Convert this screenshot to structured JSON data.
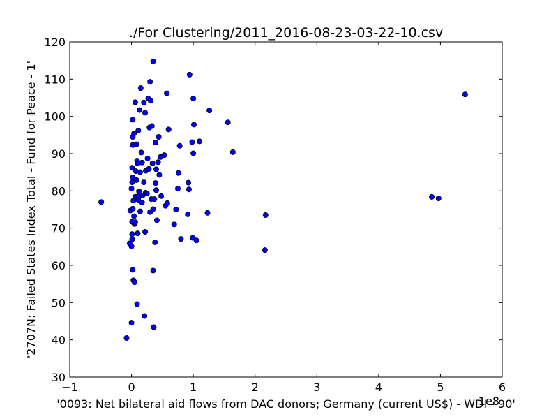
{
  "chart_data": {
    "type": "scatter",
    "title": "./For Clustering/2011_2016-08-23-03-22-10.csv",
    "xlabel": "'0093: Net bilateral aid flows from DAC donors; Germany  (current US$) - WDI - 90'",
    "ylabel": "'2707N: Failed States Index Total - Fund for Peace - 1'",
    "x_offset_label": "1e8",
    "xlim": [
      -1,
      6
    ],
    "ylim": [
      30,
      120
    ],
    "xticks": [
      "−1",
      "0",
      "1",
      "2",
      "3",
      "4",
      "5",
      "6"
    ],
    "yticks": [
      "30",
      "40",
      "50",
      "60",
      "70",
      "80",
      "90",
      "100",
      "110",
      "120"
    ],
    "xtick_values": [
      -1,
      0,
      1,
      2,
      3,
      4,
      5,
      6
    ],
    "ytick_values": [
      30,
      40,
      50,
      60,
      70,
      80,
      90,
      100,
      110,
      120
    ],
    "grid": false,
    "marker_color": "#0000ff",
    "points": [
      [
        -0.49,
        77.0
      ],
      [
        -0.08,
        40.5
      ],
      [
        -0.03,
        65.9
      ],
      [
        -0.02,
        74.7
      ],
      [
        0.0,
        44.6
      ],
      [
        0.0,
        65.1
      ],
      [
        0.01,
        86.2
      ],
      [
        0.01,
        67.0
      ],
      [
        0.0,
        80.6
      ],
      [
        0.01,
        82.3
      ],
      [
        0.02,
        83.6
      ],
      [
        0.02,
        94.5
      ],
      [
        0.02,
        92.3
      ],
      [
        0.02,
        99.1
      ],
      [
        0.01,
        71.7
      ],
      [
        0.01,
        68.4
      ],
      [
        0.02,
        75.2
      ],
      [
        0.02,
        58.8
      ],
      [
        0.03,
        56.0
      ],
      [
        0.04,
        95.4
      ],
      [
        0.03,
        77.4
      ],
      [
        0.04,
        73.2
      ],
      [
        0.05,
        55.5
      ],
      [
        0.05,
        71.1
      ],
      [
        0.06,
        71.6
      ],
      [
        0.06,
        103.8
      ],
      [
        0.06,
        78.4
      ],
      [
        0.07,
        85.3
      ],
      [
        0.08,
        82.9
      ],
      [
        0.08,
        92.5
      ],
      [
        0.09,
        88.1
      ],
      [
        0.09,
        49.6
      ],
      [
        0.1,
        87.4
      ],
      [
        0.1,
        68.6
      ],
      [
        0.11,
        96.2
      ],
      [
        0.11,
        78.6
      ],
      [
        0.11,
        77.6
      ],
      [
        0.12,
        79.9
      ],
      [
        0.13,
        101.7
      ],
      [
        0.14,
        74.5
      ],
      [
        0.14,
        85.0
      ],
      [
        0.15,
        107.6
      ],
      [
        0.16,
        90.3
      ],
      [
        0.17,
        76.9
      ],
      [
        0.17,
        87.6
      ],
      [
        0.18,
        78.8
      ],
      [
        0.2,
        103.7
      ],
      [
        0.2,
        82.3
      ],
      [
        0.21,
        46.4
      ],
      [
        0.22,
        101.0
      ],
      [
        0.22,
        69.0
      ],
      [
        0.23,
        85.4
      ],
      [
        0.23,
        79.5
      ],
      [
        0.25,
        79.3
      ],
      [
        0.26,
        88.7
      ],
      [
        0.27,
        104.8
      ],
      [
        0.28,
        85.9
      ],
      [
        0.29,
        97.0
      ],
      [
        0.3,
        109.3
      ],
      [
        0.3,
        74.3
      ],
      [
        0.31,
        104.2
      ],
      [
        0.32,
        77.8
      ],
      [
        0.33,
        97.4
      ],
      [
        0.34,
        87.4
      ],
      [
        0.35,
        58.6
      ],
      [
        0.35,
        114.8
      ],
      [
        0.35,
        75.1
      ],
      [
        0.36,
        43.4
      ],
      [
        0.37,
        77.8
      ],
      [
        0.38,
        66.2
      ],
      [
        0.39,
        82.1
      ],
      [
        0.39,
        93.0
      ],
      [
        0.4,
        85.8
      ],
      [
        0.4,
        80.2
      ],
      [
        0.41,
        72.1
      ],
      [
        0.43,
        87.7
      ],
      [
        0.44,
        94.5
      ],
      [
        0.45,
        84.3
      ],
      [
        0.47,
        89.1
      ],
      [
        0.48,
        78.6
      ],
      [
        0.53,
        89.6
      ],
      [
        0.55,
        76.0
      ],
      [
        0.57,
        106.2
      ],
      [
        0.58,
        76.7
      ],
      [
        0.6,
        96.5
      ],
      [
        0.69,
        71.0
      ],
      [
        0.72,
        75.0
      ],
      [
        0.75,
        80.6
      ],
      [
        0.76,
        84.8
      ],
      [
        0.78,
        92.1
      ],
      [
        0.8,
        67.1
      ],
      [
        0.91,
        73.7
      ],
      [
        0.92,
        82.2
      ],
      [
        0.93,
        80.4
      ],
      [
        0.94,
        111.2
      ],
      [
        0.98,
        93.1
      ],
      [
        0.99,
        67.4
      ],
      [
        1.0,
        90.1
      ],
      [
        1.0,
        104.8
      ],
      [
        1.01,
        97.8
      ],
      [
        1.05,
        66.7
      ],
      [
        1.1,
        93.3
      ],
      [
        1.23,
        74.1
      ],
      [
        1.26,
        101.6
      ],
      [
        1.56,
        98.4
      ],
      [
        1.64,
        90.4
      ],
      [
        2.16,
        64.1
      ],
      [
        2.17,
        73.5
      ],
      [
        4.86,
        78.4
      ],
      [
        4.97,
        78.0
      ],
      [
        5.4,
        105.9
      ]
    ]
  }
}
